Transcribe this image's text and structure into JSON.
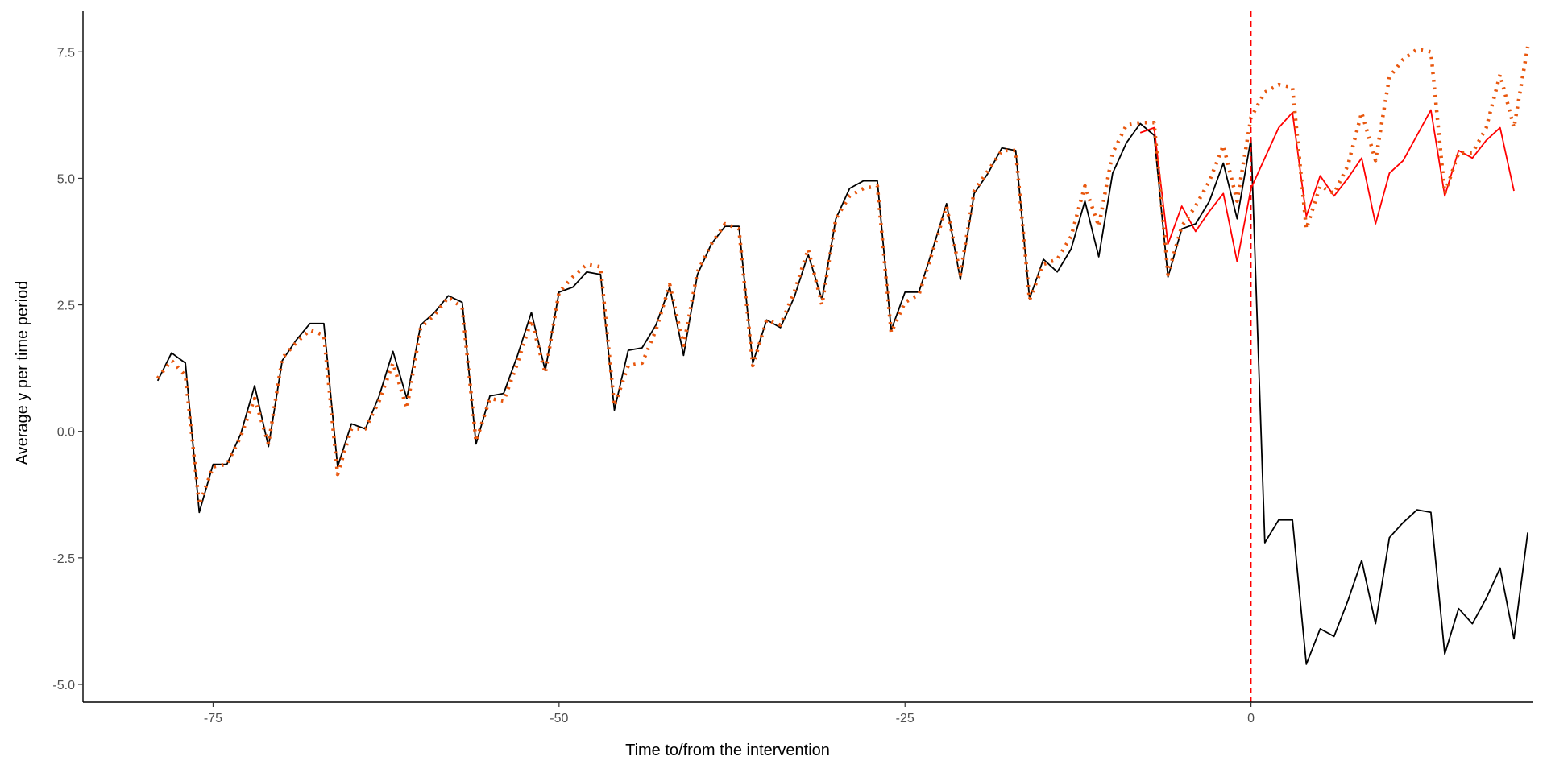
{
  "chart_data": {
    "type": "line",
    "title": "",
    "xlabel": "Time to/from the intervention",
    "ylabel": "Average y per time period",
    "xlim": [
      -84.4,
      20.4
    ],
    "ylim": [
      -5.35,
      8.3
    ],
    "xticks": [
      -75,
      -50,
      -25,
      0
    ],
    "xtick_labels": [
      "-75",
      "-50",
      "-25",
      "0"
    ],
    "yticks": [
      -5.0,
      -2.5,
      0.0,
      2.5,
      5.0,
      7.5
    ],
    "ytick_labels": [
      "-5.0",
      "-2.5",
      "0.0",
      "2.5",
      "5.0",
      "7.5"
    ],
    "grid": false,
    "legend": "none",
    "intervention_line": {
      "x": 0,
      "color": "#ff0000",
      "style": "dashed"
    },
    "series": [
      {
        "color": "#000000",
        "style": "solid",
        "x": [
          -79,
          -78,
          -77,
          -76,
          -75,
          -74,
          -73,
          -72,
          -71,
          -70,
          -69,
          -68,
          -67,
          -66,
          -65,
          -64,
          -63,
          -62,
          -61,
          -60,
          -59,
          -58,
          -57,
          -56,
          -55,
          -54,
          -53,
          -52,
          -51,
          -50,
          -49,
          -48,
          -47,
          -46,
          -45,
          -44,
          -43,
          -42,
          -41,
          -40,
          -39,
          -38,
          -37,
          -36,
          -35,
          -34,
          -33,
          -32,
          -31,
          -30,
          -29,
          -28,
          -27,
          -26,
          -25,
          -24,
          -23,
          -22,
          -21,
          -20,
          -19,
          -18,
          -17,
          -16,
          -15,
          -14,
          -13,
          -12,
          -11,
          -10,
          -9,
          -8,
          -7,
          -6,
          -5,
          -4,
          -3,
          -2,
          -1,
          0,
          1,
          2,
          3,
          4,
          5,
          6,
          7,
          8,
          9,
          10,
          11,
          12,
          13,
          14,
          15,
          16,
          17,
          18,
          19,
          20
        ],
        "y": [
          1.0,
          1.55,
          1.35,
          -1.6,
          -0.65,
          -0.65,
          -0.05,
          0.9,
          -0.3,
          1.4,
          1.8,
          2.13,
          2.13,
          -0.7,
          0.15,
          0.05,
          0.7,
          1.58,
          0.65,
          2.1,
          2.35,
          2.68,
          2.55,
          -0.25,
          0.7,
          0.75,
          1.5,
          2.35,
          1.2,
          2.75,
          2.85,
          3.15,
          3.1,
          0.42,
          1.6,
          1.65,
          2.1,
          2.85,
          1.5,
          3.1,
          3.7,
          4.05,
          4.05,
          1.35,
          2.2,
          2.05,
          2.65,
          3.5,
          2.6,
          4.2,
          4.8,
          4.95,
          4.95,
          2.0,
          2.75,
          2.75,
          3.6,
          4.5,
          3.0,
          4.7,
          5.1,
          5.6,
          5.55,
          2.62,
          3.4,
          3.15,
          3.6,
          4.55,
          3.45,
          5.1,
          5.7,
          6.08,
          5.85,
          3.05,
          4.0,
          4.1,
          4.55,
          5.3,
          4.2,
          5.78,
          -2.2,
          -1.75,
          -1.75,
          -4.6,
          -3.9,
          -4.05,
          -3.35,
          -2.55,
          -3.8,
          -2.1,
          -1.8,
          -1.55,
          -1.6,
          -4.4,
          -3.5,
          -3.8,
          -3.3,
          -2.7,
          -4.1,
          -2.0
        ]
      },
      {
        "color": "#ff0000",
        "style": "solid",
        "x": [
          -8,
          -7,
          -6,
          -5,
          -4,
          -3,
          -2,
          -1,
          0,
          1,
          2,
          3,
          4,
          5,
          6,
          7,
          8,
          9,
          10,
          11,
          12,
          13,
          14,
          15,
          16,
          17,
          18,
          19
        ],
        "y": [
          5.9,
          6.0,
          3.7,
          4.45,
          3.95,
          4.35,
          4.7,
          3.35,
          4.8,
          5.4,
          6.0,
          6.3,
          4.25,
          5.05,
          4.65,
          5.0,
          5.4,
          4.1,
          5.1,
          5.35,
          5.85,
          6.35,
          4.65,
          5.55,
          5.4,
          5.75,
          6.0,
          4.75
        ]
      },
      {
        "color": "#e8570e",
        "style": "dotted",
        "x": [
          -79,
          -78,
          -77,
          -76,
          -75,
          -74,
          -73,
          -72,
          -71,
          -70,
          -69,
          -68,
          -67,
          -66,
          -65,
          -64,
          -63,
          -62,
          -61,
          -60,
          -59,
          -58,
          -57,
          -56,
          -55,
          -54,
          -53,
          -52,
          -51,
          -50,
          -49,
          -48,
          -47,
          -46,
          -45,
          -44,
          -43,
          -42,
          -41,
          -40,
          -39,
          -38,
          -37,
          -36,
          -35,
          -34,
          -33,
          -32,
          -31,
          -30,
          -29,
          -28,
          -27,
          -26,
          -25,
          -24,
          -23,
          -22,
          -21,
          -20,
          -19,
          -18,
          -17,
          -16,
          -15,
          -14,
          -13,
          -12,
          -11,
          -10,
          -9,
          -8,
          -7,
          -6,
          -5,
          -4,
          -3,
          -2,
          -1,
          0,
          1,
          2,
          3,
          4,
          5,
          6,
          7,
          8,
          9,
          10,
          11,
          12,
          13,
          14,
          15,
          16,
          17,
          18,
          19,
          20
        ],
        "y": [
          1.05,
          1.4,
          1.1,
          -1.45,
          -0.7,
          -0.65,
          -0.1,
          0.65,
          -0.25,
          1.45,
          1.75,
          2.0,
          1.9,
          -0.85,
          0.05,
          0.05,
          0.6,
          1.35,
          0.45,
          2.05,
          2.3,
          2.65,
          2.45,
          -0.2,
          0.65,
          0.6,
          1.35,
          2.2,
          1.15,
          2.75,
          3.05,
          3.3,
          3.25,
          0.5,
          1.3,
          1.35,
          2.0,
          2.9,
          1.7,
          3.15,
          3.7,
          4.1,
          4.0,
          1.3,
          2.2,
          2.1,
          2.75,
          3.6,
          2.5,
          4.2,
          4.65,
          4.8,
          4.85,
          1.95,
          2.55,
          2.7,
          3.55,
          4.45,
          3.1,
          4.75,
          5.15,
          5.55,
          5.55,
          2.6,
          3.3,
          3.4,
          3.85,
          4.85,
          4.05,
          5.5,
          6.05,
          6.1,
          6.1,
          3.1,
          4.05,
          4.45,
          4.95,
          5.65,
          4.55,
          6.2,
          6.7,
          6.85,
          6.8,
          4.0,
          4.85,
          4.7,
          5.25,
          6.3,
          5.35,
          7.0,
          7.35,
          7.55,
          7.5,
          4.7,
          5.5,
          5.5,
          6.0,
          7.05,
          6.0,
          7.6
        ]
      }
    ]
  }
}
